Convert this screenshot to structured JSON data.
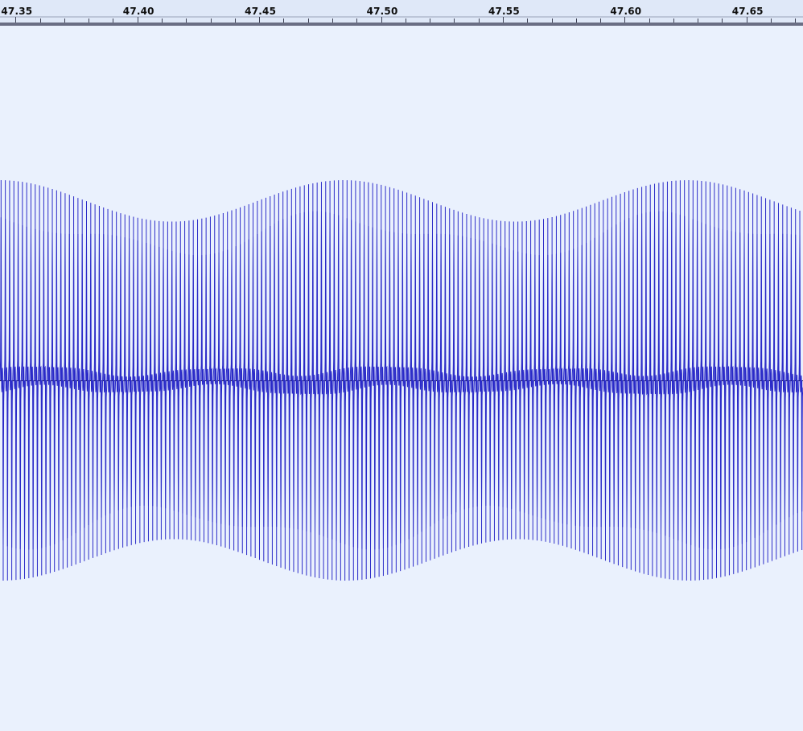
{
  "timeline": {
    "ticks": [
      "47.35",
      "47.40",
      "47.45",
      "47.50",
      "47.55",
      "47.60",
      "47.65"
    ],
    "start_time": 47.3436,
    "end_time": 47.6732,
    "minor_ticks_per_major": 5
  },
  "waveform": {
    "color": "#2b2bc8",
    "center_line_color": "#1a1a33",
    "cycles_visible": 188,
    "max_amplitude": 0.58,
    "min_amplitude_envelope": 0.46,
    "envelope_period_seconds": 0.141
  },
  "colors": {
    "background": "#eaf1fd",
    "ruler_background": "#dfe8f8",
    "ruler_line": "#6a6e84"
  }
}
